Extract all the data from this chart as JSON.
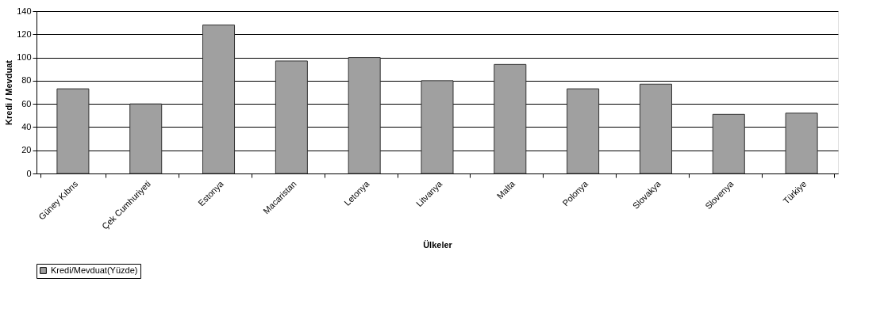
{
  "chart_data": {
    "type": "bar",
    "categories": [
      "Güney Kıbrıs",
      "Çek Cumhuriyeti",
      "Estonya",
      "Macaristan",
      "Letonya",
      "Litvanya",
      "Malta",
      "Polonya",
      "Slovakya",
      "Slovenya",
      "Türkiye"
    ],
    "series": [
      {
        "name": "Kredi/Mevduat(Yüzde)",
        "color": "#a0a0a0",
        "values": [
          73,
          60,
          128,
          97,
          100,
          80,
          94,
          73,
          77,
          51,
          52
        ]
      }
    ],
    "xlabel": "Ülkeler",
    "ylabel": "Kredi / Mevduat",
    "ylim": [
      0,
      140
    ],
    "yticks": [
      0,
      20,
      40,
      60,
      80,
      100,
      120,
      140
    ],
    "grid": "y",
    "legend": "bottom"
  }
}
